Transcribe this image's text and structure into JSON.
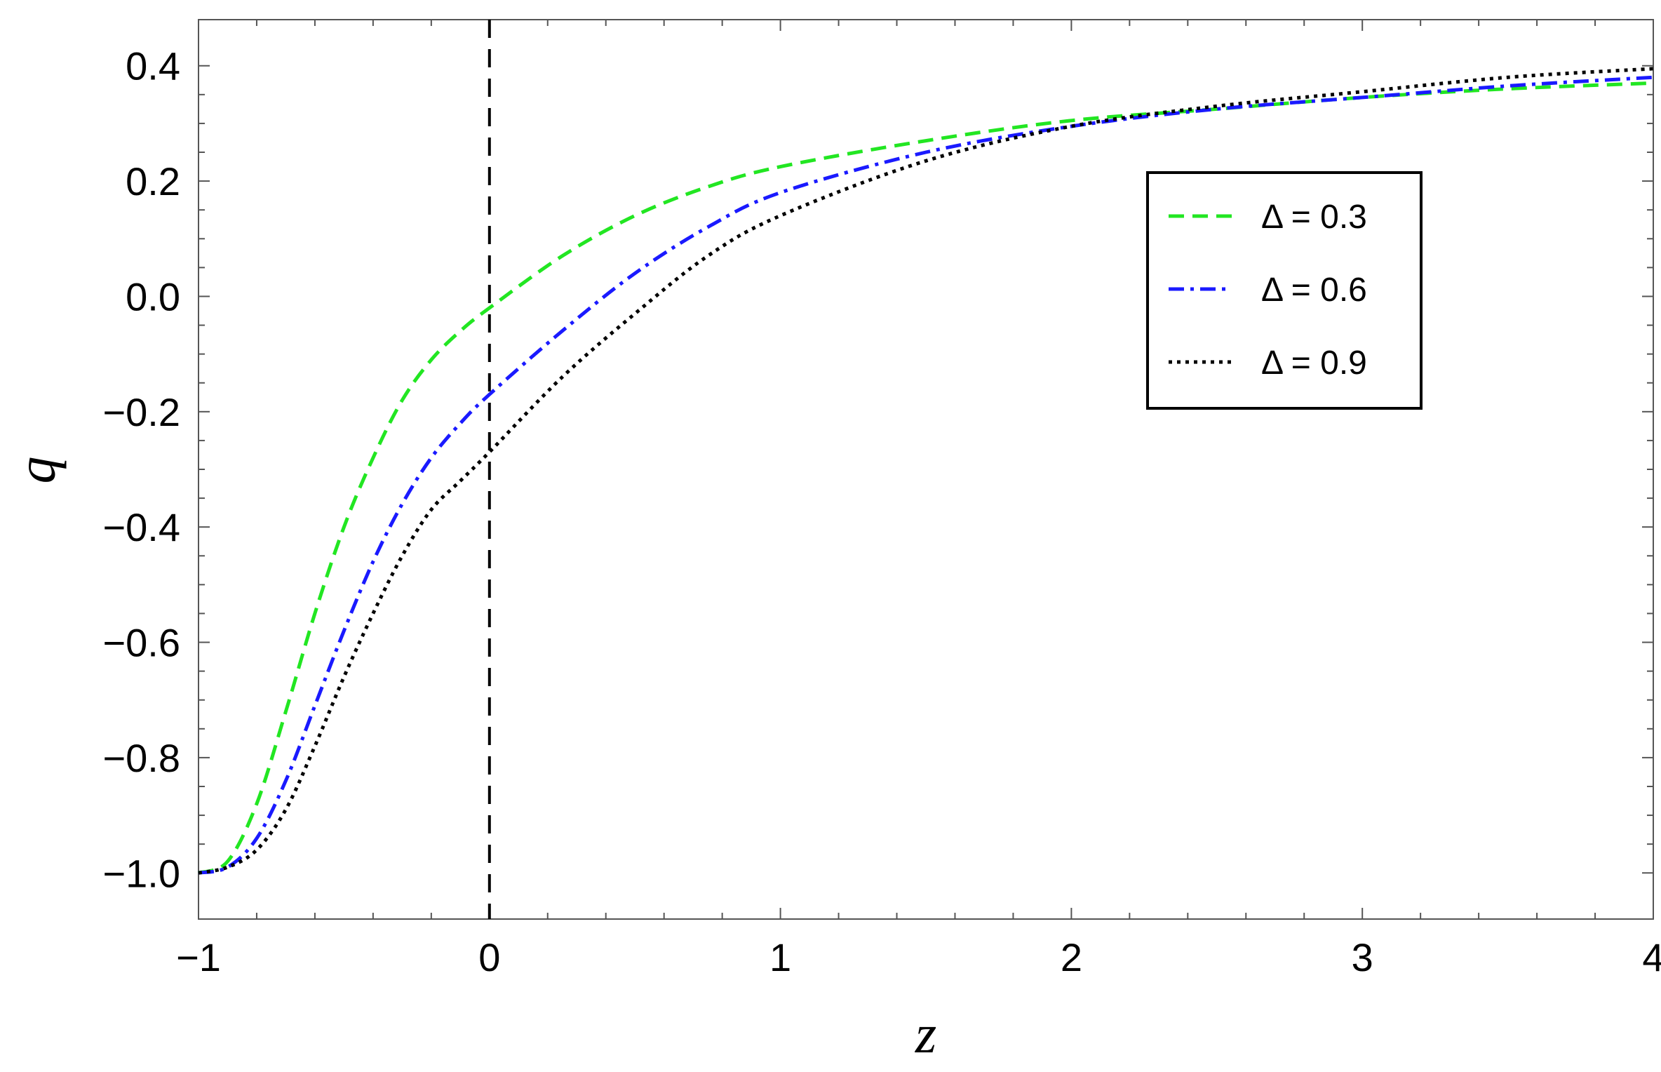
{
  "chart_data": {
    "type": "line",
    "title": "",
    "xlabel": "z",
    "ylabel": "q",
    "xlim": [
      -1,
      4
    ],
    "ylim": [
      -1.08,
      0.48
    ],
    "xticks": [
      -1,
      0,
      1,
      2,
      3,
      4
    ],
    "xtick_labels": [
      "−1",
      "0",
      "1",
      "2",
      "3",
      "4"
    ],
    "yticks": [
      -1.0,
      -0.8,
      -0.6,
      -0.4,
      -0.2,
      0.0,
      0.2,
      0.4
    ],
    "ytick_labels": [
      "−1.0",
      "−0.8",
      "−0.6",
      "−0.4",
      "−0.2",
      "0.0",
      "0.2",
      "0.4"
    ],
    "grid": false,
    "legend_position": "right",
    "reference_line": {
      "axis": "x",
      "value": 0,
      "style": "dashed",
      "color": "#000000"
    },
    "series": [
      {
        "name": "Δ = 0.3",
        "color": "#22e622",
        "dash": "dashed",
        "x": [
          -1.0,
          -0.9,
          -0.8,
          -0.7,
          -0.6,
          -0.5,
          -0.4,
          -0.3,
          -0.2,
          -0.1,
          0.0,
          0.25,
          0.5,
          0.75,
          1.0,
          1.5,
          2.0,
          2.5,
          3.0,
          3.5,
          4.0
        ],
        "y": [
          -1.0,
          -0.98,
          -0.88,
          -0.72,
          -0.55,
          -0.4,
          -0.28,
          -0.18,
          -0.11,
          -0.06,
          -0.02,
          0.07,
          0.14,
          0.19,
          0.225,
          0.27,
          0.305,
          0.325,
          0.345,
          0.36,
          0.37
        ]
      },
      {
        "name": "Δ = 0.6",
        "color": "#1a1aff",
        "dash": "dashdot",
        "x": [
          -1.0,
          -0.9,
          -0.8,
          -0.7,
          -0.6,
          -0.5,
          -0.4,
          -0.3,
          -0.2,
          -0.1,
          0.0,
          0.25,
          0.5,
          0.75,
          1.0,
          1.5,
          2.0,
          2.5,
          3.0,
          3.5,
          4.0
        ],
        "y": [
          -1.0,
          -0.99,
          -0.94,
          -0.84,
          -0.71,
          -0.58,
          -0.46,
          -0.36,
          -0.28,
          -0.22,
          -0.17,
          -0.06,
          0.04,
          0.12,
          0.18,
          0.25,
          0.295,
          0.325,
          0.345,
          0.365,
          0.38
        ]
      },
      {
        "name": "Δ = 0.9",
        "color": "#000000",
        "dash": "dotted",
        "x": [
          -1.0,
          -0.9,
          -0.8,
          -0.7,
          -0.6,
          -0.5,
          -0.4,
          -0.3,
          -0.2,
          -0.1,
          0.0,
          0.25,
          0.5,
          0.75,
          1.0,
          1.5,
          2.0,
          2.5,
          3.0,
          3.5,
          4.0
        ],
        "y": [
          -1.0,
          -0.99,
          -0.96,
          -0.89,
          -0.78,
          -0.66,
          -0.55,
          -0.45,
          -0.37,
          -0.32,
          -0.27,
          -0.14,
          -0.03,
          0.07,
          0.14,
          0.235,
          0.295,
          0.33,
          0.355,
          0.38,
          0.395
        ]
      }
    ]
  }
}
